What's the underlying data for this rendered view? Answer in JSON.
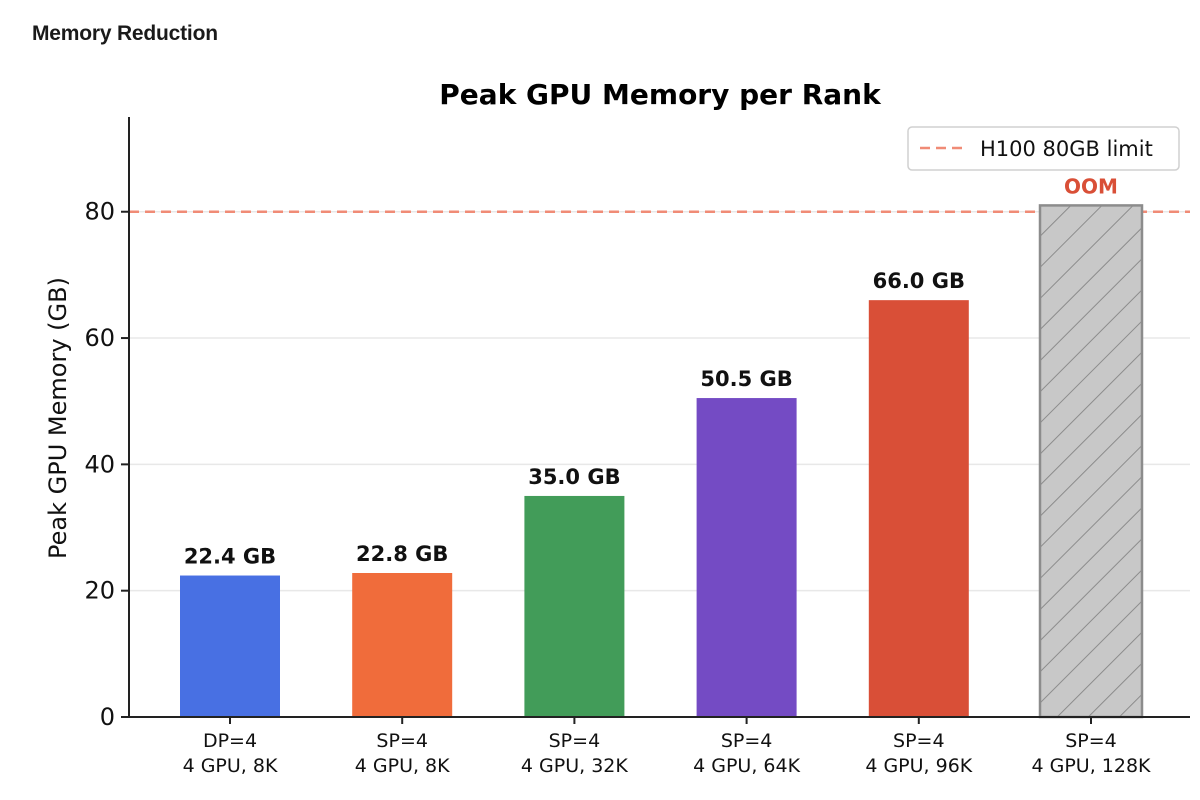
{
  "page": {
    "heading": "Memory Reduction"
  },
  "chart_data": {
    "type": "bar",
    "title": "Peak GPU Memory per Rank",
    "xlabel": "",
    "ylabel": "Peak GPU Memory (GB)",
    "ylim": [
      0,
      95
    ],
    "yticks": [
      0,
      20,
      40,
      60,
      80
    ],
    "grid": "horizontal",
    "categories": [
      {
        "line1": "DP=4",
        "line2": "4 GPU, 8K"
      },
      {
        "line1": "SP=4",
        "line2": "4 GPU, 8K"
      },
      {
        "line1": "SP=4",
        "line2": "4 GPU, 32K"
      },
      {
        "line1": "SP=4",
        "line2": "4 GPU, 64K"
      },
      {
        "line1": "SP=4",
        "line2": "4 GPU, 96K"
      },
      {
        "line1": "SP=4",
        "line2": "4 GPU, 128K"
      }
    ],
    "values": [
      22.4,
      22.8,
      35.0,
      50.5,
      66.0,
      81
    ],
    "labels": [
      "22.4 GB",
      "22.8 GB",
      "35.0 GB",
      "50.5 GB",
      "66.0 GB",
      "OOM"
    ],
    "colors": [
      "#4870e3",
      "#f06c3b",
      "#429c59",
      "#744bc4",
      "#d94f37",
      "#c8c8c8"
    ],
    "oom_index": 5,
    "oom_color": "#d94f37",
    "reference_line": {
      "value": 80,
      "label": "H100 80GB limit",
      "color": "#f08b76"
    },
    "legend_position": "top-right"
  }
}
